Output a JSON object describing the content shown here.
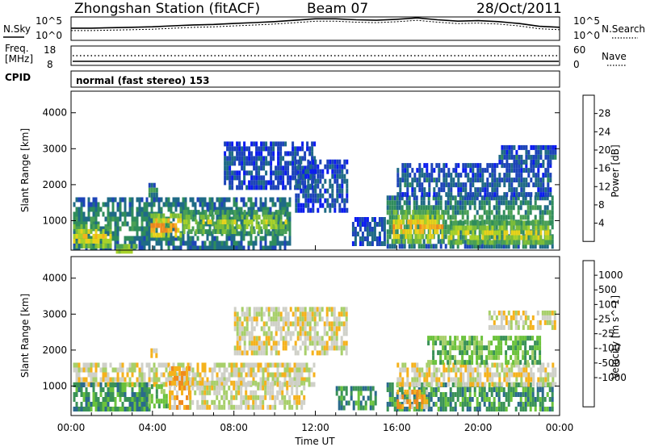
{
  "header": {
    "station": "Zhongshan Station (fitACF)",
    "beam": "Beam 07",
    "date": "28/Oct/2011"
  },
  "panels": {
    "nsky_label": "N.Sky",
    "nsky_ticks": [
      "10^5",
      "10^0"
    ],
    "nsearch_label": "N.Search",
    "nsearch_ticks": [
      "10^5",
      "10^0"
    ],
    "freq_label": "Freq.",
    "freq_unit": "[MHz]",
    "freq_ticks": [
      "18",
      "8"
    ],
    "nave_label": "Nave",
    "nave_ticks": [
      "60",
      "0"
    ],
    "cpid_label": "CPID",
    "cpid_text": "normal (fast stereo) 153"
  },
  "chart_data": [
    {
      "type": "heatmap",
      "name": "power-panel",
      "xlabel": "Time UT",
      "ylabel": "Slant Range [km]",
      "x_ticks": [
        "00:00",
        "04:00",
        "08:00",
        "12:00",
        "16:00",
        "20:00",
        "00:00"
      ],
      "xlim_hours": [
        0,
        24
      ],
      "y_ticks": [
        1000,
        2000,
        3000,
        4000
      ],
      "ylim": [
        180,
        4600
      ],
      "colorbar": {
        "label": "Power [dB]",
        "ticks": [
          "4",
          "8",
          "12",
          "16",
          "20",
          "24",
          "28"
        ],
        "range": [
          0,
          32
        ],
        "colors": [
          "#0b1cf0",
          "#1d44b8",
          "#1f6a86",
          "#2f8c5c",
          "#4aa055",
          "#7cbd39",
          "#a8d22a",
          "#e7d21b",
          "#f5b21c",
          "#f08a1d",
          "#ee5b1e",
          "#ee1d1d"
        ]
      },
      "bands": [
        {
          "t0": 0.1,
          "t1": 10.7,
          "r0": 300,
          "r1": 1650,
          "level": 9
        },
        {
          "t0": 0.1,
          "t1": 2.0,
          "r0": 300,
          "r1": 900,
          "level": 22
        },
        {
          "t0": 3.9,
          "t1": 5.4,
          "r0": 550,
          "r1": 1200,
          "level": 27
        },
        {
          "t0": 5.5,
          "t1": 10.5,
          "r0": 700,
          "r1": 1300,
          "level": 18
        },
        {
          "t0": 2.2,
          "t1": 3.2,
          "r0": 200,
          "r1": 350,
          "level": 24
        },
        {
          "t0": 3.8,
          "t1": 4.2,
          "r0": 1750,
          "r1": 2050,
          "level": 10
        },
        {
          "t0": 7.5,
          "t1": 12.0,
          "r0": 1900,
          "r1": 3200,
          "level": 4
        },
        {
          "t0": 11.0,
          "t1": 13.5,
          "r0": 1300,
          "r1": 2700,
          "level": 4
        },
        {
          "t0": 15.5,
          "t1": 23.7,
          "r0": 300,
          "r1": 1700,
          "level": 11
        },
        {
          "t0": 15.8,
          "t1": 18.2,
          "r0": 450,
          "r1": 1300,
          "level": 24
        },
        {
          "t0": 18.5,
          "t1": 23.5,
          "r0": 400,
          "r1": 1000,
          "level": 20
        },
        {
          "t0": 16.0,
          "t1": 23.5,
          "r0": 1700,
          "r1": 2600,
          "level": 5
        },
        {
          "t0": 21.0,
          "t1": 23.8,
          "r0": 2600,
          "r1": 3100,
          "level": 5
        },
        {
          "t0": 13.8,
          "t1": 15.4,
          "r0": 300,
          "r1": 1100,
          "level": 5
        }
      ]
    },
    {
      "type": "heatmap",
      "name": "velocity-panel",
      "xlabel": "Time UT",
      "ylabel": "Slant Range [km]",
      "x_ticks": [
        "00:00",
        "04:00",
        "08:00",
        "12:00",
        "16:00",
        "20:00",
        "00:00"
      ],
      "xlim_hours": [
        0,
        24
      ],
      "y_ticks": [
        1000,
        2000,
        3000,
        4000
      ],
      "ylim": [
        180,
        4600
      ],
      "colorbar": {
        "label": "Velocity [m s^-1]",
        "ticks": [
          "1000",
          "500",
          "100",
          "25",
          "-25",
          "-100",
          "-500",
          "-1000"
        ],
        "colors": [
          "#1f3aa8",
          "#2a6a8c",
          "#3a9257",
          "#6bc23c",
          "#a7cf6a",
          "#cfd0c8",
          "#f5b21c",
          "#f08a1d",
          "#ee4a1e",
          "#ee1d1d"
        ]
      },
      "bands": [
        {
          "t0": 0.1,
          "t1": 12.0,
          "r0": 1100,
          "r1": 1650,
          "level": 5
        },
        {
          "t0": 0.1,
          "t1": 3.8,
          "r0": 300,
          "r1": 1100,
          "level": 2
        },
        {
          "t0": 3.8,
          "t1": 4.8,
          "r0": 500,
          "r1": 1050,
          "level": 3
        },
        {
          "t0": 4.8,
          "t1": 5.8,
          "r0": 400,
          "r1": 1550,
          "level": 6
        },
        {
          "t0": 5.8,
          "t1": 11.5,
          "r0": 450,
          "r1": 1150,
          "level": 5
        },
        {
          "t0": 3.9,
          "t1": 4.3,
          "r0": 1800,
          "r1": 2050,
          "level": 6
        },
        {
          "t0": 8.0,
          "t1": 13.5,
          "r0": 1900,
          "r1": 3200,
          "level": 5
        },
        {
          "t0": 15.5,
          "t1": 23.7,
          "r0": 300,
          "r1": 1100,
          "level": 2
        },
        {
          "t0": 16.0,
          "t1": 17.5,
          "r0": 450,
          "r1": 900,
          "level": 6
        },
        {
          "t0": 16.0,
          "t1": 23.8,
          "r0": 1100,
          "r1": 1650,
          "level": 5
        },
        {
          "t0": 17.5,
          "t1": 23.0,
          "r0": 1700,
          "r1": 2400,
          "level": 3
        },
        {
          "t0": 20.5,
          "t1": 23.8,
          "r0": 2600,
          "r1": 3100,
          "level": 5
        },
        {
          "t0": 13.0,
          "t1": 15.0,
          "r0": 400,
          "r1": 1000,
          "level": 2
        }
      ]
    }
  ],
  "summary_series": {
    "nsky_level": [
      2.6,
      2.6,
      2.7,
      2.8,
      2.9,
      3.1,
      3.3,
      3.4,
      3.6,
      3.8,
      4.0,
      4.3,
      4.6,
      4.6,
      4.4,
      4.3,
      4.5,
      4.8,
      4.4,
      4.1,
      4.2,
      4.0,
      3.6,
      3.0,
      2.8
    ],
    "freq_mhz": 11.0
  }
}
